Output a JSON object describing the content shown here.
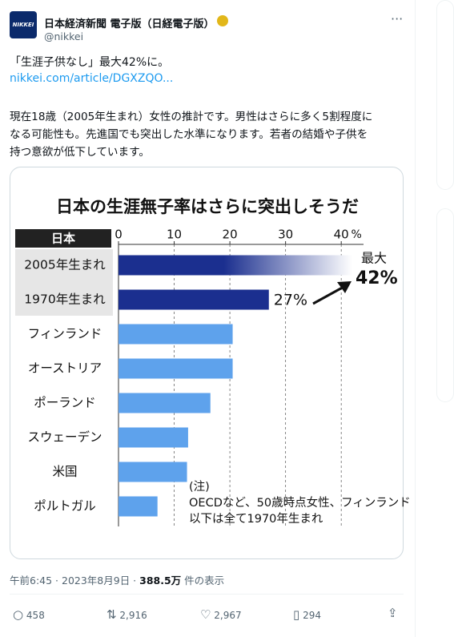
{
  "tweet": {
    "logo": "NIKKEI",
    "author": "日本経済新聞 電子版（日経電子版）",
    "handle": "@nikkei",
    "headline": "「生涯子供なし」最大42%に。",
    "link": "nikkei.com/article/DGXZQO...",
    "body": [
      "現在18歳（2005年生まれ）女性の推計です。男性はさらに多く5割程度に",
      "なる可能性も。先進国でも突出した水準になります。若者の結婚や子供を",
      "持つ意欲が低下しています。"
    ],
    "timestamp": "午前6:45 · 2023年8月9日 · ",
    "views": "388.5万",
    "views_suffix": " 件の表示",
    "replies": "458",
    "reposts": "2,916",
    "likes": "2,967",
    "bookmarks": "294"
  },
  "chart_data": {
    "type": "hbar",
    "title": "日本の生涯無子率はさらに突出しそうだ",
    "group_label": "日本",
    "categories": [
      "2005年生まれ",
      "1970年生まれ",
      "フィンランド",
      "オーストリア",
      "ポーランド",
      "スウェーデン",
      "米国",
      "ポルトガル"
    ],
    "values": [
      42,
      27,
      20.5,
      20.5,
      16.5,
      12.5,
      12.3,
      7
    ],
    "value_labels": [
      "42%",
      "27%",
      null,
      null,
      null,
      null,
      null,
      null
    ],
    "colors": [
      "#1b2f8f",
      "#1b2f8f",
      "#5ea2ec",
      "#5ea2ec",
      "#5ea2ec",
      "#5ea2ec",
      "#5ea2ec",
      "#5ea2ec"
    ],
    "annotation": "最大",
    "x_unit": "%",
    "xlim": [
      0,
      44
    ],
    "xticks": [
      0,
      10,
      20,
      30,
      40
    ],
    "grid": true,
    "note": [
      "(注)",
      "OECDなど、50歳時点女性、フィンランド",
      "以下は全て1970年生まれ"
    ]
  }
}
